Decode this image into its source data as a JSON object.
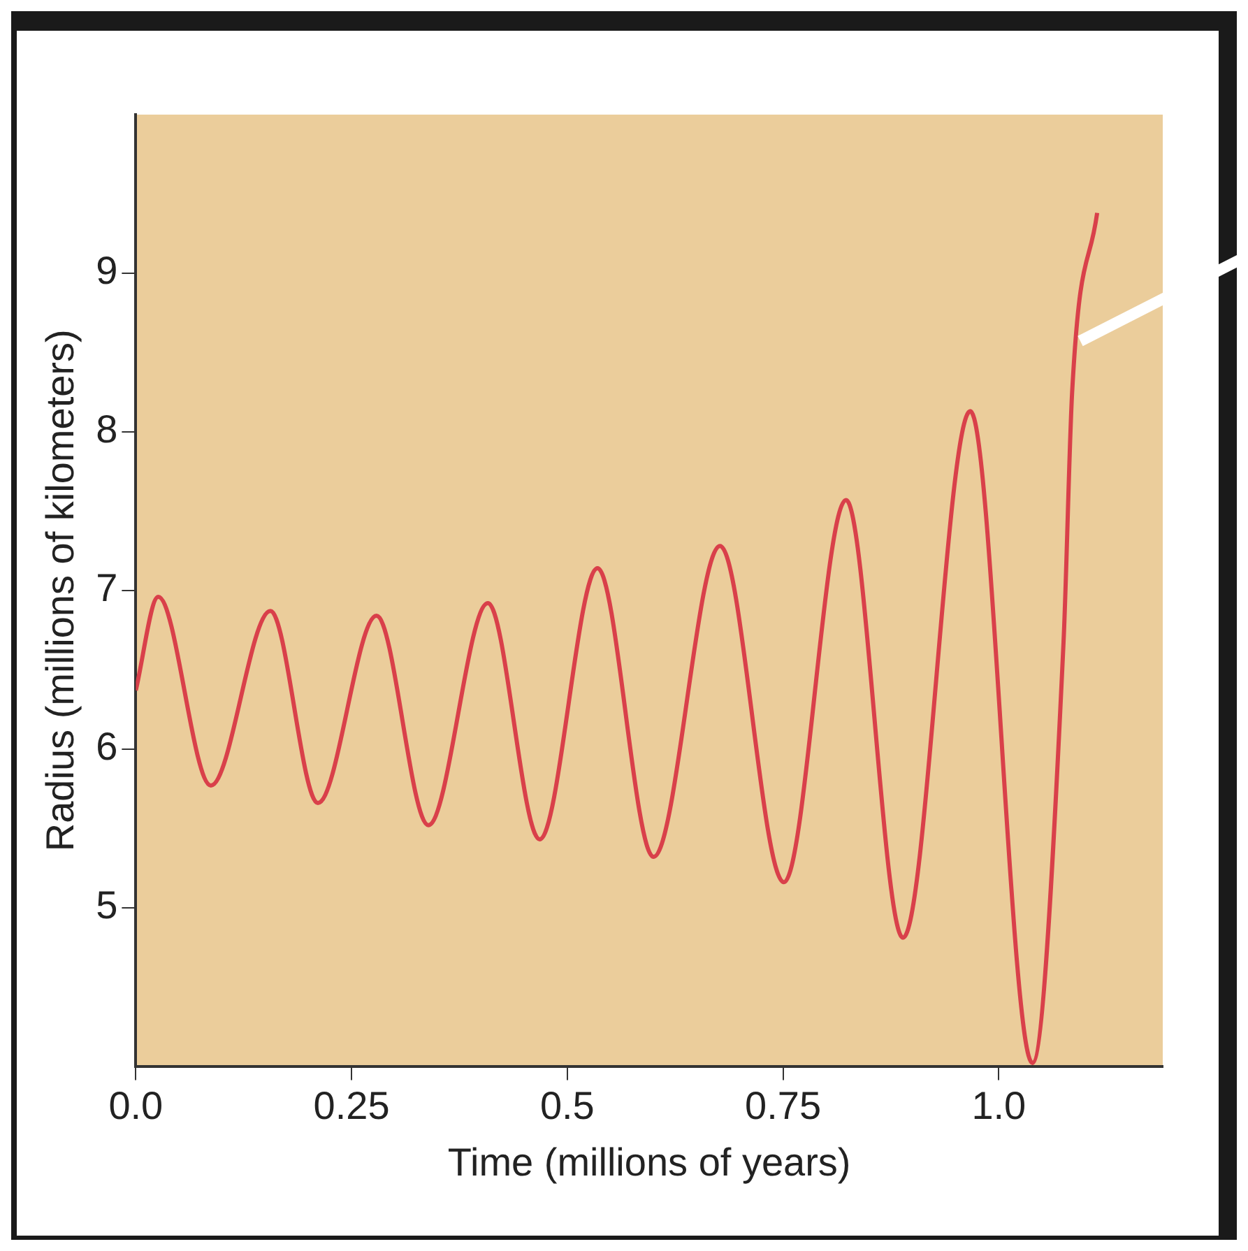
{
  "chart_data": {
    "type": "line",
    "xlabel": "Time (millions of years)",
    "ylabel": "Radius (millions of kilometers)",
    "series": [
      {
        "color": "#d9404a",
        "x": [
          0,
          0.026,
          0.087,
          0.156,
          0.211,
          0.279,
          0.339,
          0.408,
          0.468,
          0.535,
          0.6,
          0.677,
          0.751,
          0.823,
          0.889,
          0.967,
          1.039,
          1.075,
          1.085,
          1.114
        ],
        "values": [
          6.37,
          6.96,
          5.77,
          6.87,
          5.66,
          6.84,
          5.52,
          6.92,
          5.43,
          7.14,
          5.32,
          7.28,
          5.16,
          7.57,
          4.81,
          8.13,
          4.02,
          6.67,
          8.25,
          9.38
        ]
      }
    ],
    "xlim": [
      0,
      1.19
    ],
    "xticks": [
      {
        "value": 0,
        "label": "0.0"
      },
      0.25,
      0.5,
      0.75,
      {
        "value": 1,
        "label": "1.0"
      }
    ],
    "ylim": [
      4,
      10
    ],
    "yticks": [
      5,
      6,
      7,
      8,
      9
    ],
    "grid": false,
    "legend": false,
    "marker": "none",
    "line_style": "solid"
  }
}
